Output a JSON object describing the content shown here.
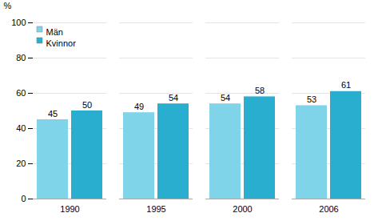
{
  "chart_data": {
    "type": "bar",
    "categories": [
      "1990",
      "1995",
      "2000",
      "2006"
    ],
    "series": [
      {
        "name": "Män",
        "color": "#7FD4EA",
        "values": [
          45,
          49,
          54,
          53
        ]
      },
      {
        "name": "Kvinnor",
        "color": "#29AECF",
        "values": [
          50,
          54,
          58,
          61
        ]
      }
    ],
    "ylabel": "%",
    "ylim": [
      0,
      100
    ],
    "yticks": [
      0,
      20,
      40,
      60,
      80,
      100
    ],
    "grid": true,
    "legend": "upper left",
    "data_labels": true
  }
}
